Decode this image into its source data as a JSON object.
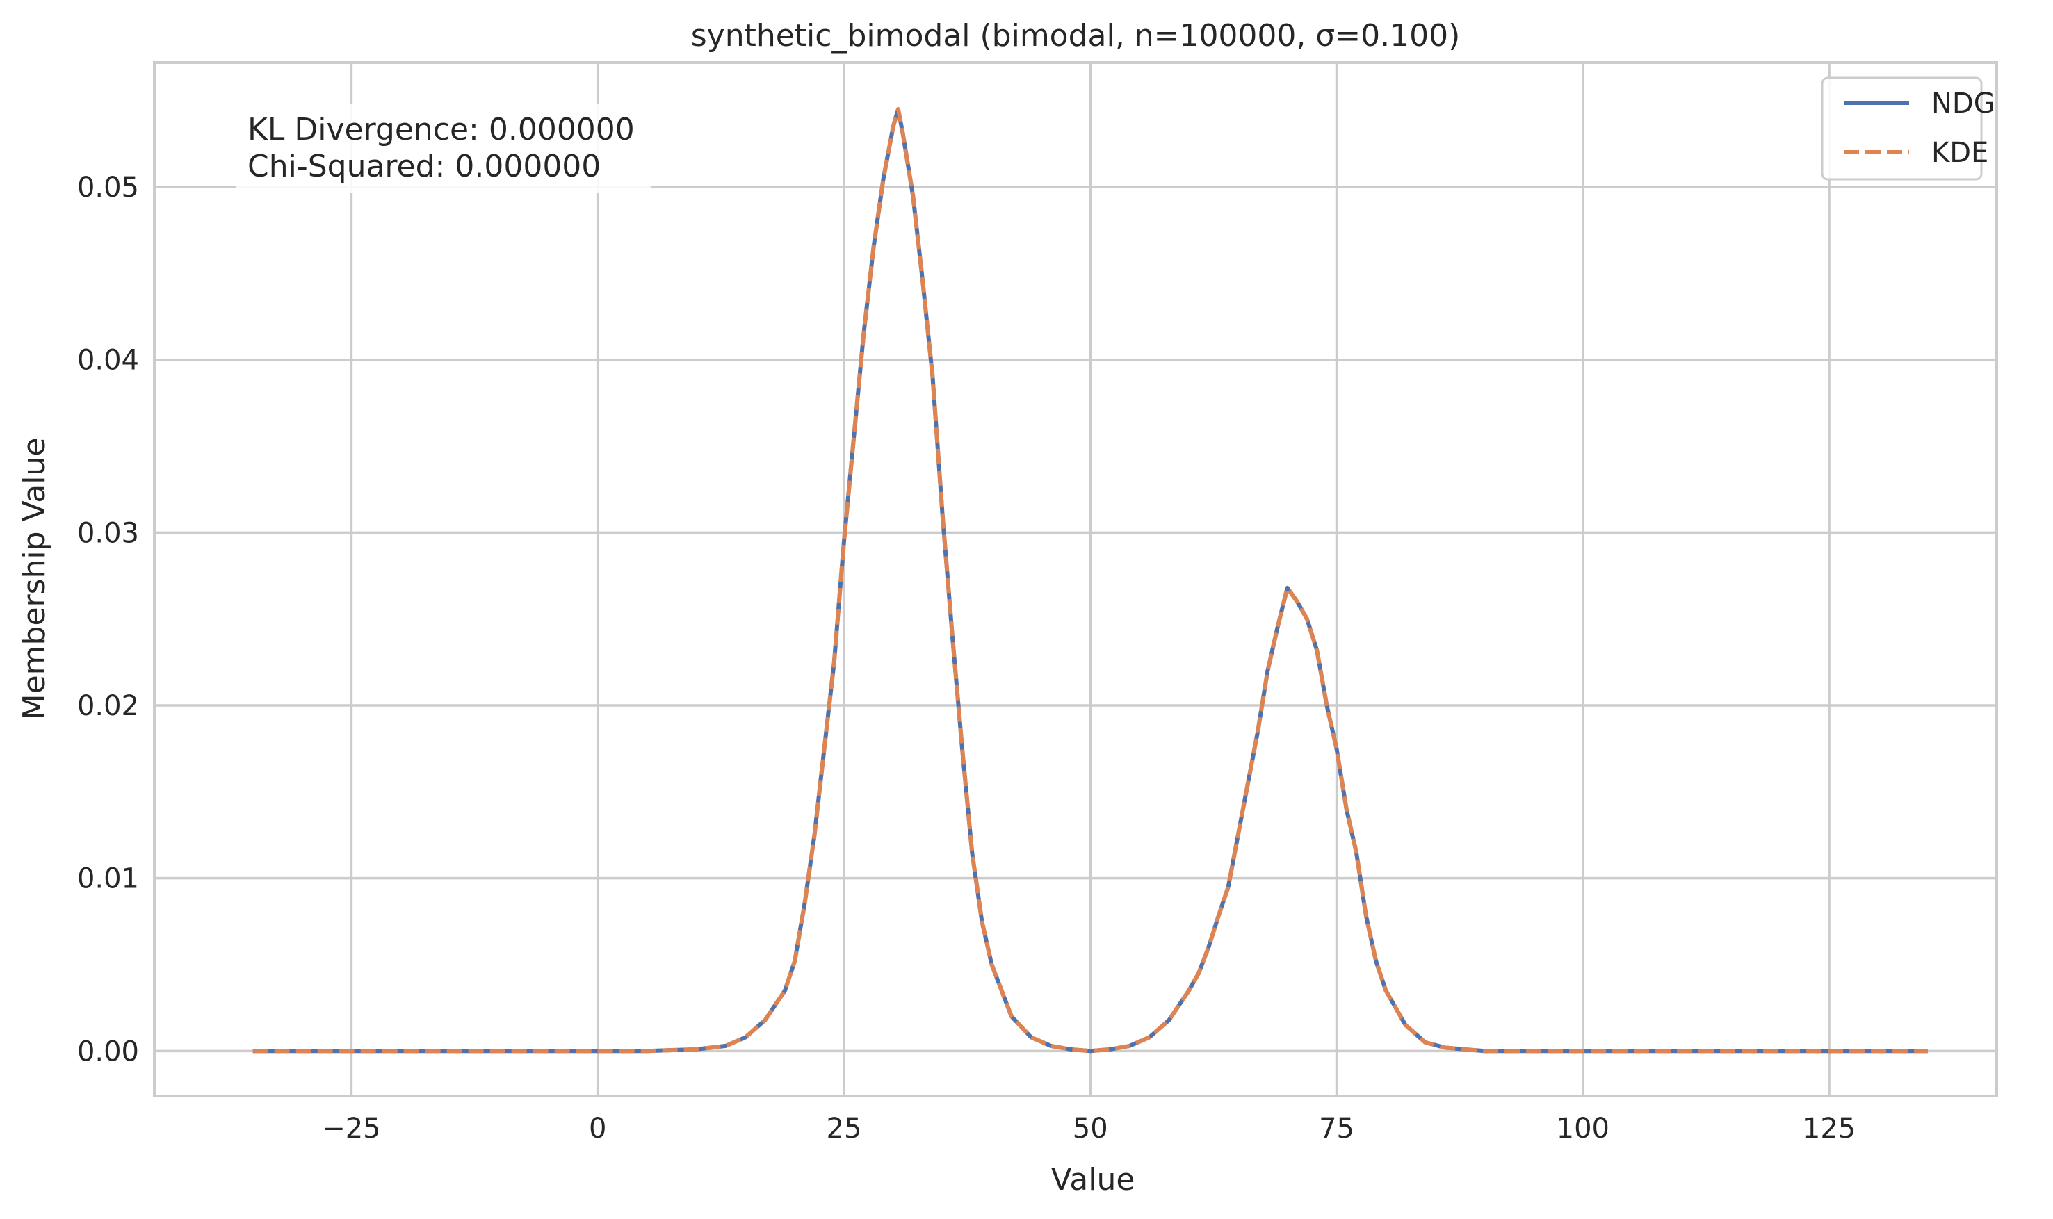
{
  "chart_data": {
    "type": "line",
    "title": "synthetic_bimodal (bimodal, n=100000, σ=0.100)",
    "xlabel": "Value",
    "ylabel": "Membership Value",
    "xlim": [
      -45,
      142
    ],
    "ylim": [
      -0.0026,
      0.0572
    ],
    "xticks": [
      -25,
      0,
      25,
      50,
      75,
      100,
      125
    ],
    "xtick_labels": [
      "−25",
      "0",
      "25",
      "50",
      "75",
      "100",
      "125"
    ],
    "yticks": [
      0.0,
      0.01,
      0.02,
      0.03,
      0.04,
      0.05
    ],
    "ytick_labels": [
      "0.00",
      "0.01",
      "0.02",
      "0.03",
      "0.04",
      "0.05"
    ],
    "grid": true,
    "legend_position": "top-right",
    "annotations": [
      "KL Divergence: 0.000000",
      "Chi-Squared: 0.000000"
    ],
    "x": [
      -35,
      -25,
      -15,
      -5,
      5,
      10,
      13,
      15,
      17,
      19,
      20,
      21,
      22,
      23,
      24,
      25,
      26,
      27,
      28,
      29,
      30,
      30.5,
      31,
      32,
      33,
      34,
      35,
      36,
      37,
      38,
      39,
      40,
      42,
      44,
      46,
      48,
      50,
      52,
      54,
      56,
      58,
      60,
      61,
      62,
      63,
      64,
      65,
      66,
      67,
      68,
      69,
      70,
      71,
      72,
      73,
      74,
      75,
      76,
      77,
      78,
      79,
      80,
      82,
      84,
      86,
      88,
      90,
      95,
      100,
      110,
      120,
      130,
      135
    ],
    "series": [
      {
        "name": "NDG",
        "color": "#4c72b0",
        "style": "solid",
        "values": [
          0,
          0,
          0,
          0,
          0,
          0.0001,
          0.0003,
          0.0008,
          0.0018,
          0.0035,
          0.0052,
          0.0085,
          0.0125,
          0.0175,
          0.0225,
          0.0295,
          0.0355,
          0.0415,
          0.0465,
          0.0505,
          0.0535,
          0.0545,
          0.053,
          0.0495,
          0.0445,
          0.039,
          0.031,
          0.024,
          0.0175,
          0.0115,
          0.0075,
          0.005,
          0.002,
          0.0008,
          0.0003,
          0.0001,
          0.0,
          0.0001,
          0.0003,
          0.0008,
          0.0018,
          0.0035,
          0.0045,
          0.006,
          0.0078,
          0.0095,
          0.0125,
          0.0155,
          0.0185,
          0.022,
          0.0245,
          0.0268,
          0.026,
          0.025,
          0.0232,
          0.02,
          0.0175,
          0.014,
          0.0115,
          0.0078,
          0.0052,
          0.0035,
          0.0015,
          0.0005,
          0.0002,
          0.0001,
          0,
          0,
          0,
          0,
          0,
          0,
          0
        ]
      },
      {
        "name": "KDE",
        "color": "#dd8452",
        "style": "dashed",
        "values": [
          0,
          0,
          0,
          0,
          0,
          0.0001,
          0.0003,
          0.0008,
          0.0018,
          0.0035,
          0.0052,
          0.0085,
          0.0125,
          0.0175,
          0.0225,
          0.0295,
          0.0355,
          0.0415,
          0.0465,
          0.0505,
          0.0535,
          0.0545,
          0.053,
          0.0495,
          0.0445,
          0.039,
          0.031,
          0.024,
          0.0175,
          0.0115,
          0.0075,
          0.005,
          0.002,
          0.0008,
          0.0003,
          0.0001,
          0.0,
          0.0001,
          0.0003,
          0.0008,
          0.0018,
          0.0035,
          0.0045,
          0.006,
          0.0078,
          0.0095,
          0.0125,
          0.0155,
          0.0185,
          0.022,
          0.0245,
          0.0268,
          0.026,
          0.025,
          0.0232,
          0.02,
          0.0175,
          0.014,
          0.0115,
          0.0078,
          0.0052,
          0.0035,
          0.0015,
          0.0005,
          0.0002,
          0.0001,
          0,
          0,
          0,
          0,
          0,
          0,
          0
        ]
      }
    ]
  }
}
